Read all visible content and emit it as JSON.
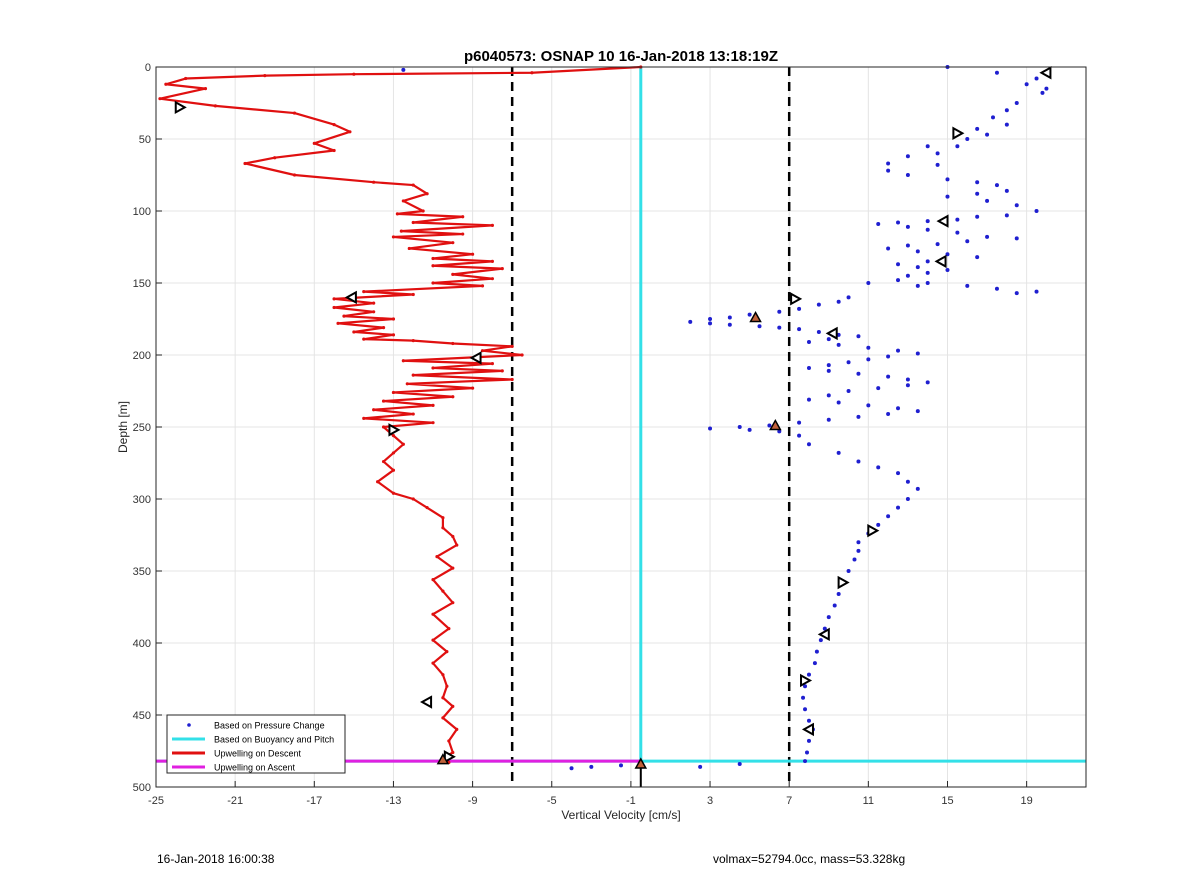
{
  "chart_data": {
    "type": "line",
    "title": "p6040573: OSNAP 10 16-Jan-2018 13:18:19Z",
    "xlabel": "Vertical Velocity [cm/s]",
    "ylabel": "Depth [m]",
    "xlim": [
      -25,
      22
    ],
    "ylim": [
      0,
      500
    ],
    "y_reversed": true,
    "grid": true,
    "xticks": [
      -25,
      -21,
      -17,
      -13,
      -9,
      -5,
      -1,
      3,
      7,
      11,
      15,
      19
    ],
    "yticks": [
      0,
      50,
      100,
      150,
      200,
      250,
      300,
      350,
      400,
      450,
      500
    ],
    "legend_position": "bottom-left",
    "legend": [
      {
        "label": "Based on Pressure Change",
        "color": "#1f1fd0",
        "style": "dots"
      },
      {
        "label": "Based on Buoyancy and Pitch",
        "color": "#33e0e8",
        "style": "line"
      },
      {
        "label": "Upwelling on Descent",
        "color": "#e01010",
        "style": "line"
      },
      {
        "label": "Upwelling on Ascent",
        "color": "#e020e0",
        "style": "line"
      }
    ],
    "reference_lines": [
      {
        "axis": "x",
        "value": -7,
        "style": "dashed",
        "color": "#000000"
      },
      {
        "axis": "x",
        "value": 7,
        "style": "dashed",
        "color": "#000000"
      },
      {
        "axis": "x",
        "value": -0.5,
        "style": "solid",
        "color": "#000000"
      }
    ],
    "series": [
      {
        "name": "Upwelling on Descent",
        "color": "#e01010",
        "points": [
          [
            -0.5,
            0
          ],
          [
            -6,
            4
          ],
          [
            -15,
            5
          ],
          [
            -19.5,
            6
          ],
          [
            -23.5,
            8
          ],
          [
            -24.5,
            12
          ],
          [
            -22.5,
            15
          ],
          [
            -24.8,
            22
          ],
          [
            -22,
            27
          ],
          [
            -18,
            32
          ],
          [
            -16,
            40
          ],
          [
            -15.2,
            45
          ],
          [
            -17,
            53
          ],
          [
            -16,
            58
          ],
          [
            -19,
            63
          ],
          [
            -20.5,
            67
          ],
          [
            -18,
            75
          ],
          [
            -14,
            80
          ],
          [
            -12,
            82
          ],
          [
            -11.3,
            88
          ],
          [
            -12.5,
            93
          ],
          [
            -11.5,
            100
          ],
          [
            -12.8,
            102
          ],
          [
            -9.5,
            104
          ],
          [
            -12,
            108
          ],
          [
            -8,
            110
          ],
          [
            -12.6,
            114
          ],
          [
            -9.5,
            116
          ],
          [
            -13,
            118
          ],
          [
            -10,
            122
          ],
          [
            -12.2,
            126
          ],
          [
            -9,
            130
          ],
          [
            -11,
            133
          ],
          [
            -8,
            135
          ],
          [
            -11,
            138
          ],
          [
            -7.5,
            140
          ],
          [
            -10,
            144
          ],
          [
            -8,
            147
          ],
          [
            -11,
            150
          ],
          [
            -8.5,
            152
          ],
          [
            -14.5,
            156
          ],
          [
            -12,
            158
          ],
          [
            -16,
            161
          ],
          [
            -14,
            164
          ],
          [
            -16,
            167
          ],
          [
            -14,
            170
          ],
          [
            -15.5,
            173
          ],
          [
            -13,
            175
          ],
          [
            -15.8,
            178
          ],
          [
            -13.5,
            181
          ],
          [
            -15,
            184
          ],
          [
            -13,
            186
          ],
          [
            -14.5,
            189
          ],
          [
            -12,
            190
          ],
          [
            -10,
            192
          ],
          [
            -7,
            194
          ],
          [
            -8.5,
            197
          ],
          [
            -6.5,
            200
          ],
          [
            -12.5,
            204
          ],
          [
            -8,
            206
          ],
          [
            -11,
            209
          ],
          [
            -7.5,
            211
          ],
          [
            -12,
            214
          ],
          [
            -7,
            217
          ],
          [
            -12.3,
            220
          ],
          [
            -9,
            223
          ],
          [
            -13,
            226
          ],
          [
            -10,
            229
          ],
          [
            -13.5,
            232
          ],
          [
            -11,
            235
          ],
          [
            -14,
            238
          ],
          [
            -12,
            241
          ],
          [
            -14.5,
            244
          ],
          [
            -11,
            247
          ],
          [
            -13.5,
            250
          ],
          [
            -13,
            256
          ],
          [
            -12.5,
            262
          ],
          [
            -13,
            268
          ],
          [
            -13.5,
            274
          ],
          [
            -13,
            280
          ],
          [
            -13.8,
            288
          ],
          [
            -13,
            296
          ],
          [
            -12,
            300
          ],
          [
            -11.3,
            306
          ],
          [
            -10.5,
            313
          ],
          [
            -10.5,
            320
          ],
          [
            -10,
            326
          ],
          [
            -9.8,
            332
          ],
          [
            -10.8,
            340
          ],
          [
            -10,
            348
          ],
          [
            -11,
            356
          ],
          [
            -10.5,
            364
          ],
          [
            -10,
            372
          ],
          [
            -11,
            380
          ],
          [
            -10.2,
            390
          ],
          [
            -11,
            398
          ],
          [
            -10.3,
            406
          ],
          [
            -11,
            414
          ],
          [
            -10.5,
            422
          ],
          [
            -10.3,
            430
          ],
          [
            -10.5,
            438
          ],
          [
            -10,
            444
          ],
          [
            -10.5,
            452
          ],
          [
            -9.8,
            460
          ],
          [
            -10.2,
            468
          ],
          [
            -10,
            476
          ],
          [
            -10.5,
            480
          ],
          [
            -10.2,
            483
          ]
        ]
      },
      {
        "name": "Based on Pressure Change",
        "color": "#1f1fd0",
        "points": [
          [
            -12.5,
            2
          ],
          [
            15,
            0
          ],
          [
            17.5,
            4
          ],
          [
            19.5,
            8
          ],
          [
            19,
            12
          ],
          [
            20,
            15
          ],
          [
            19.8,
            18
          ],
          [
            18.5,
            25
          ],
          [
            18,
            30
          ],
          [
            17.3,
            35
          ],
          [
            18,
            40
          ],
          [
            16.5,
            43
          ],
          [
            17,
            47
          ],
          [
            16,
            50
          ],
          [
            15.5,
            55
          ],
          [
            14,
            55
          ],
          [
            14.5,
            60
          ],
          [
            13,
            62
          ],
          [
            12,
            67
          ],
          [
            14.5,
            68
          ],
          [
            12,
            72
          ],
          [
            13,
            75
          ],
          [
            15,
            78
          ],
          [
            16.5,
            80
          ],
          [
            17.5,
            82
          ],
          [
            18,
            86
          ],
          [
            16.5,
            88
          ],
          [
            15,
            90
          ],
          [
            17,
            93
          ],
          [
            18.5,
            96
          ],
          [
            19.5,
            100
          ],
          [
            18,
            103
          ],
          [
            16.5,
            104
          ],
          [
            15.5,
            106
          ],
          [
            14,
            107
          ],
          [
            12.5,
            108
          ],
          [
            11.5,
            109
          ],
          [
            13,
            111
          ],
          [
            14,
            113
          ],
          [
            15.5,
            115
          ],
          [
            17,
            118
          ],
          [
            18.5,
            119
          ],
          [
            16,
            121
          ],
          [
            14.5,
            123
          ],
          [
            13,
            124
          ],
          [
            12,
            126
          ],
          [
            13.5,
            128
          ],
          [
            15,
            130
          ],
          [
            16.5,
            132
          ],
          [
            14,
            135
          ],
          [
            12.5,
            137
          ],
          [
            13.5,
            139
          ],
          [
            15,
            141
          ],
          [
            14,
            143
          ],
          [
            13,
            145
          ],
          [
            12.5,
            148
          ],
          [
            14,
            150
          ],
          [
            16,
            152
          ],
          [
            17.5,
            154
          ],
          [
            18.5,
            157
          ],
          [
            19.5,
            156
          ],
          [
            13.5,
            152
          ],
          [
            11,
            150
          ],
          [
            10,
            160
          ],
          [
            9.5,
            163
          ],
          [
            8.5,
            165
          ],
          [
            7.5,
            168
          ],
          [
            6.5,
            170
          ],
          [
            5,
            172
          ],
          [
            4,
            174
          ],
          [
            3,
            175
          ],
          [
            2,
            177
          ],
          [
            3,
            178
          ],
          [
            4,
            179
          ],
          [
            5.5,
            180
          ],
          [
            6.5,
            181
          ],
          [
            7.5,
            182
          ],
          [
            8.5,
            184
          ],
          [
            9.5,
            186
          ],
          [
            10.5,
            187
          ],
          [
            9,
            189
          ],
          [
            8,
            191
          ],
          [
            9.5,
            193
          ],
          [
            11,
            195
          ],
          [
            12.5,
            197
          ],
          [
            13.5,
            199
          ],
          [
            12,
            201
          ],
          [
            11,
            203
          ],
          [
            10,
            205
          ],
          [
            9,
            207
          ],
          [
            8,
            209
          ],
          [
            9,
            211
          ],
          [
            10.5,
            213
          ],
          [
            12,
            215
          ],
          [
            13,
            217
          ],
          [
            14,
            219
          ],
          [
            13,
            221
          ],
          [
            11.5,
            223
          ],
          [
            10,
            225
          ],
          [
            9,
            228
          ],
          [
            8,
            231
          ],
          [
            9.5,
            233
          ],
          [
            11,
            235
          ],
          [
            12.5,
            237
          ],
          [
            13.5,
            239
          ],
          [
            12,
            241
          ],
          [
            10.5,
            243
          ],
          [
            9,
            245
          ],
          [
            7.5,
            247
          ],
          [
            6,
            249
          ],
          [
            4.5,
            250
          ],
          [
            3,
            251
          ],
          [
            5,
            252
          ],
          [
            6.5,
            253
          ],
          [
            7.5,
            256
          ],
          [
            8,
            262
          ],
          [
            9.5,
            268
          ],
          [
            10.5,
            274
          ],
          [
            11.5,
            278
          ],
          [
            12.5,
            282
          ],
          [
            13,
            288
          ],
          [
            13.5,
            293
          ],
          [
            13,
            300
          ],
          [
            12.5,
            306
          ],
          [
            12,
            312
          ],
          [
            11.5,
            318
          ],
          [
            11,
            324
          ],
          [
            10.5,
            330
          ],
          [
            10.5,
            336
          ],
          [
            10.3,
            342
          ],
          [
            10,
            350
          ],
          [
            9.7,
            358
          ],
          [
            9.5,
            366
          ],
          [
            9.3,
            374
          ],
          [
            9,
            382
          ],
          [
            8.8,
            390
          ],
          [
            8.6,
            398
          ],
          [
            8.4,
            406
          ],
          [
            8.3,
            414
          ],
          [
            8,
            422
          ],
          [
            7.8,
            430
          ],
          [
            7.7,
            438
          ],
          [
            7.8,
            446
          ],
          [
            8,
            454
          ],
          [
            8.2,
            460
          ],
          [
            8,
            468
          ],
          [
            7.9,
            476
          ],
          [
            7.8,
            482
          ],
          [
            2.5,
            486
          ],
          [
            4.5,
            484
          ],
          [
            -1.5,
            485
          ],
          [
            -4,
            487
          ],
          [
            -3,
            486
          ]
        ]
      },
      {
        "name": "Based on Buoyancy and Pitch",
        "color": "#33e0e8",
        "points": [
          [
            -0.5,
            0
          ],
          [
            -0.5,
            483
          ]
        ]
      },
      {
        "name": "Upwelling on Ascent",
        "color": "#e020e0",
        "points": [
          [
            -25,
            482
          ],
          [
            -0.5,
            482
          ]
        ]
      }
    ],
    "horizontal_line": {
      "y": 482,
      "color": "#33e0e8"
    },
    "markers": [
      {
        "x": 20,
        "y": 4,
        "dir": "left"
      },
      {
        "x": 15.5,
        "y": 46,
        "dir": "right"
      },
      {
        "x": 14.8,
        "y": 107,
        "dir": "left"
      },
      {
        "x": 14.7,
        "y": 135,
        "dir": "left"
      },
      {
        "x": 7.3,
        "y": 161,
        "dir": "right"
      },
      {
        "x": 9.2,
        "y": 185,
        "dir": "left"
      },
      {
        "x": 11.2,
        "y": 322,
        "dir": "right"
      },
      {
        "x": 9.7,
        "y": 358,
        "dir": "right"
      },
      {
        "x": 8.8,
        "y": 394,
        "dir": "left"
      },
      {
        "x": 7.8,
        "y": 426,
        "dir": "right"
      },
      {
        "x": 8,
        "y": 460,
        "dir": "left"
      },
      {
        "x": -23.8,
        "y": 28,
        "dir": "right"
      },
      {
        "x": -15.1,
        "y": 160,
        "dir": "left"
      },
      {
        "x": -8.8,
        "y": 202,
        "dir": "left"
      },
      {
        "x": -13,
        "y": 252,
        "dir": "right"
      },
      {
        "x": -11.3,
        "y": 441,
        "dir": "left"
      },
      {
        "x": -10.2,
        "y": 479,
        "dir": "right"
      }
    ],
    "filled_markers": [
      {
        "x": 5.3,
        "y": 174,
        "color": "#c0603a"
      },
      {
        "x": 6.3,
        "y": 249,
        "color": "#c0603a"
      },
      {
        "x": -0.5,
        "y": 484,
        "color": "#c0603a"
      },
      {
        "x": -10.5,
        "y": 481,
        "color": "#c0603a"
      }
    ]
  },
  "footer": {
    "left": "16-Jan-2018 16:00:38",
    "right": "volmax=52794.0cc, mass=53.328kg"
  }
}
